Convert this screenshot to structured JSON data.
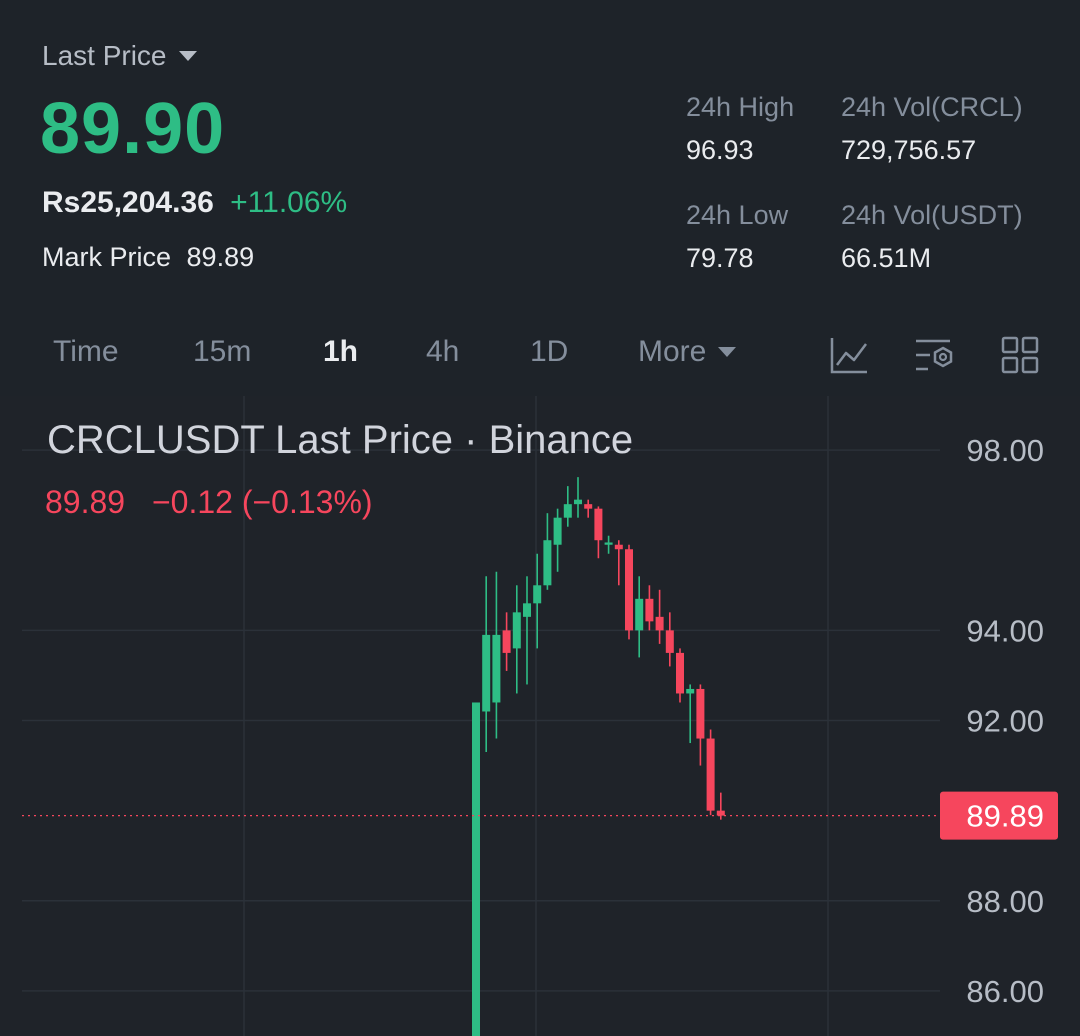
{
  "header": {
    "last_price_label": "Last Price",
    "last_price": "89.90",
    "fiat_price": "Rs25,204.36",
    "change_pct": "+11.06%",
    "mark_price_label": "Mark Price",
    "mark_price": "89.89"
  },
  "stats": {
    "high_label": "24h High",
    "high": "96.93",
    "vol_crcl_label": "24h Vol(CRCL)",
    "vol_crcl": "729,756.57",
    "low_label": "24h Low",
    "low": "79.78",
    "vol_usdt_label": "24h Vol(USDT)",
    "vol_usdt": "66.51M"
  },
  "tabs": {
    "time": "Time",
    "m15": "15m",
    "h1": "1h",
    "h4": "4h",
    "d1": "1D",
    "more": "More"
  },
  "icons": [
    "indicator-icon",
    "settings-icon",
    "grid-icon"
  ],
  "colors": {
    "up": "#2ebd85",
    "down": "#f6465d",
    "bg": "#1e2329",
    "grid": "#2b3139"
  },
  "chart_data": {
    "type": "candlestick",
    "title": "CRCLUSDT Last Price · Binance",
    "last_value": "89.89",
    "change": "−0.12",
    "change_pct": "(−0.13%)",
    "ylim": [
      85.0,
      99.2
    ],
    "y_ticks": [
      "98.00",
      "94.00",
      "92.00",
      "88.00",
      "86.00"
    ],
    "last_price_tag": "89.89",
    "candles": [
      {
        "o": 76.0,
        "h": 92.4,
        "l": 76.0,
        "c": 92.4
      },
      {
        "o": 92.2,
        "h": 95.2,
        "l": 91.3,
        "c": 93.9
      },
      {
        "o": 92.4,
        "h": 95.3,
        "l": 91.6,
        "c": 93.9
      },
      {
        "o": 94.0,
        "h": 94.4,
        "l": 93.1,
        "c": 93.5
      },
      {
        "o": 93.6,
        "h": 95.0,
        "l": 92.6,
        "c": 94.4
      },
      {
        "o": 94.3,
        "h": 95.2,
        "l": 92.8,
        "c": 94.6
      },
      {
        "o": 94.6,
        "h": 95.7,
        "l": 93.6,
        "c": 95.0
      },
      {
        "o": 95.0,
        "h": 96.6,
        "l": 94.9,
        "c": 96.0
      },
      {
        "o": 95.9,
        "h": 96.7,
        "l": 95.3,
        "c": 96.5
      },
      {
        "o": 96.5,
        "h": 97.2,
        "l": 96.3,
        "c": 96.8
      },
      {
        "o": 96.8,
        "h": 97.4,
        "l": 96.5,
        "c": 96.9
      },
      {
        "o": 96.8,
        "h": 96.9,
        "l": 96.5,
        "c": 96.7
      },
      {
        "o": 96.7,
        "h": 96.75,
        "l": 95.6,
        "c": 96.0
      },
      {
        "o": 95.9,
        "h": 96.1,
        "l": 95.7,
        "c": 95.95
      },
      {
        "o": 95.9,
        "h": 96.0,
        "l": 95.0,
        "c": 95.8
      },
      {
        "o": 95.8,
        "h": 95.9,
        "l": 93.8,
        "c": 94.0
      },
      {
        "o": 94.0,
        "h": 95.2,
        "l": 93.4,
        "c": 94.7
      },
      {
        "o": 94.7,
        "h": 95.0,
        "l": 94.0,
        "c": 94.2
      },
      {
        "o": 94.3,
        "h": 94.9,
        "l": 93.7,
        "c": 94.0
      },
      {
        "o": 94.0,
        "h": 94.4,
        "l": 93.2,
        "c": 93.5
      },
      {
        "o": 93.5,
        "h": 93.6,
        "l": 92.4,
        "c": 92.6
      },
      {
        "o": 92.6,
        "h": 92.8,
        "l": 91.5,
        "c": 92.7
      },
      {
        "o": 92.7,
        "h": 92.8,
        "l": 91.0,
        "c": 91.6
      },
      {
        "o": 91.6,
        "h": 91.8,
        "l": 89.9,
        "c": 90.0
      },
      {
        "o": 90.0,
        "h": 90.4,
        "l": 89.8,
        "c": 89.89
      }
    ]
  }
}
